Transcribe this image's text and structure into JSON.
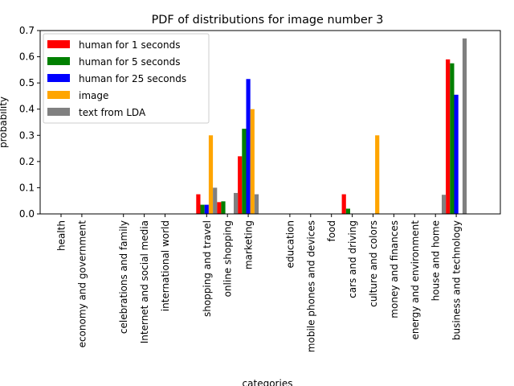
{
  "chart_data": {
    "type": "bar",
    "title": "PDF of distributions for image number 3",
    "xlabel": "categories",
    "ylabel": "probability",
    "ylim": [
      0,
      0.7
    ],
    "yticks": [
      0.0,
      0.1,
      0.2,
      0.3,
      0.4,
      0.5,
      0.6,
      0.7
    ],
    "ytick_labels": [
      "0.0",
      "0.1",
      "0.2",
      "0.3",
      "0.4",
      "0.5",
      "0.6",
      "0.7"
    ],
    "legend_position": "top-left",
    "grid": false,
    "categories": [
      "health",
      "economy and government",
      "",
      "celebrations and family",
      "Internet and social media",
      "international world",
      "",
      "shopping and travel",
      "online shopping",
      "marketing",
      "",
      "education",
      "mobile phones and devices",
      "food",
      "cars and driving",
      "culture and colors",
      "money and finances",
      "energy and environment",
      "house and home",
      "business and technology"
    ],
    "series": [
      {
        "name": "human for 1 seconds",
        "color": "#ff0000",
        "values": [
          0,
          0,
          0,
          0,
          0,
          0,
          0,
          0.075,
          0.045,
          0.22,
          0,
          0,
          0,
          0,
          0.075,
          0,
          0,
          0,
          0,
          0.59
        ]
      },
      {
        "name": "human for 5 seconds",
        "color": "#008000",
        "values": [
          0,
          0,
          0,
          0,
          0,
          0,
          0,
          0.035,
          0.048,
          0.325,
          0,
          0,
          0,
          0,
          0.02,
          0,
          0,
          0,
          0,
          0.575
        ]
      },
      {
        "name": "human for 25 seconds",
        "color": "#0000ff",
        "values": [
          0,
          0,
          0,
          0,
          0,
          0,
          0,
          0.035,
          0,
          0.515,
          0,
          0,
          0,
          0,
          0,
          0,
          0,
          0,
          0,
          0.455
        ]
      },
      {
        "name": "image",
        "color": "#ffa500",
        "values": [
          0,
          0,
          0,
          0,
          0,
          0,
          0,
          0.3,
          0,
          0.4,
          0,
          0,
          0,
          0,
          0,
          0.3,
          0,
          0,
          0,
          0
        ]
      },
      {
        "name": "text from LDA",
        "color": "#808080",
        "values": [
          0,
          0,
          0,
          0,
          0,
          0,
          0,
          0.1,
          0.08,
          0.075,
          0,
          0,
          0,
          0,
          0,
          0,
          0,
          0,
          0.073,
          0.67
        ]
      }
    ]
  }
}
